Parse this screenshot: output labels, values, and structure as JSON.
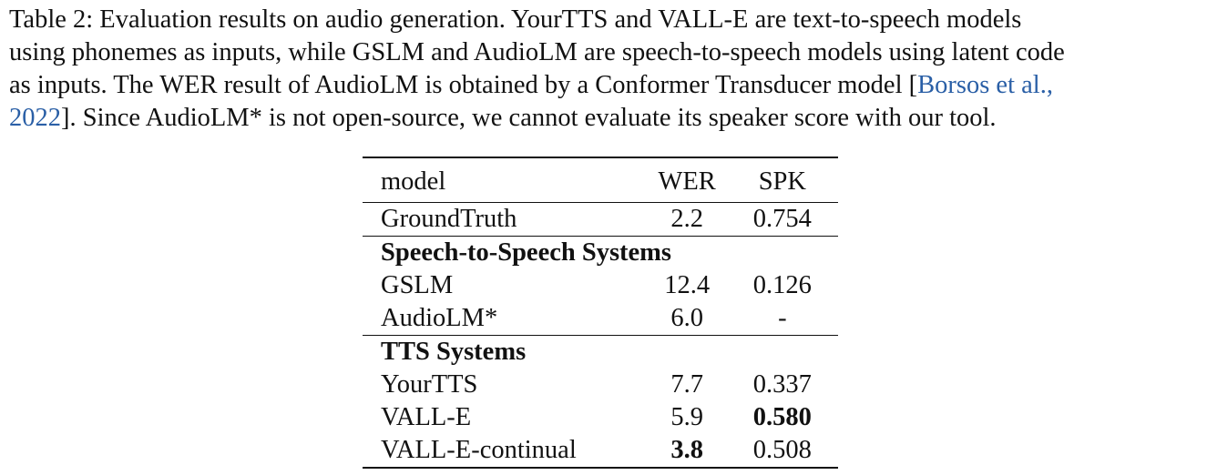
{
  "caption": {
    "line1": "Table 2: Evaluation results on audio generation. YourTTS and VALL-E are text-to-speech models",
    "line2": "using phonemes as inputs, while GSLM and AudioLM are speech-to-speech models using latent code",
    "line3_pre": "as inputs. The WER result of AudioLM is obtained by a Conformer Transducer model [",
    "line3_cite": "Borsos et al.,",
    "line4_cite": "2022",
    "line4_post": "]. Since AudioLM* is not open-source, we cannot evaluate its speaker score with our tool."
  },
  "table": {
    "headers": {
      "model": "model",
      "wer": "WER",
      "spk": "SPK"
    },
    "ground_truth": {
      "model": "GroundTruth",
      "wer": "2.2",
      "spk": "0.754"
    },
    "section1": "Speech-to-Speech Systems",
    "s2s_rows": [
      {
        "model": "GSLM",
        "wer": "12.4",
        "spk": "0.126"
      },
      {
        "model": "AudioLM*",
        "wer": "6.0",
        "spk": "-"
      }
    ],
    "section2": "TTS Systems",
    "tts_rows": [
      {
        "model": "YourTTS",
        "wer": "7.7",
        "spk": "0.337"
      },
      {
        "model": "VALL-E",
        "wer": "5.9",
        "spk": "0.580"
      },
      {
        "model": "VALL-E-continual",
        "wer": "3.8",
        "spk": "0.508"
      }
    ]
  }
}
